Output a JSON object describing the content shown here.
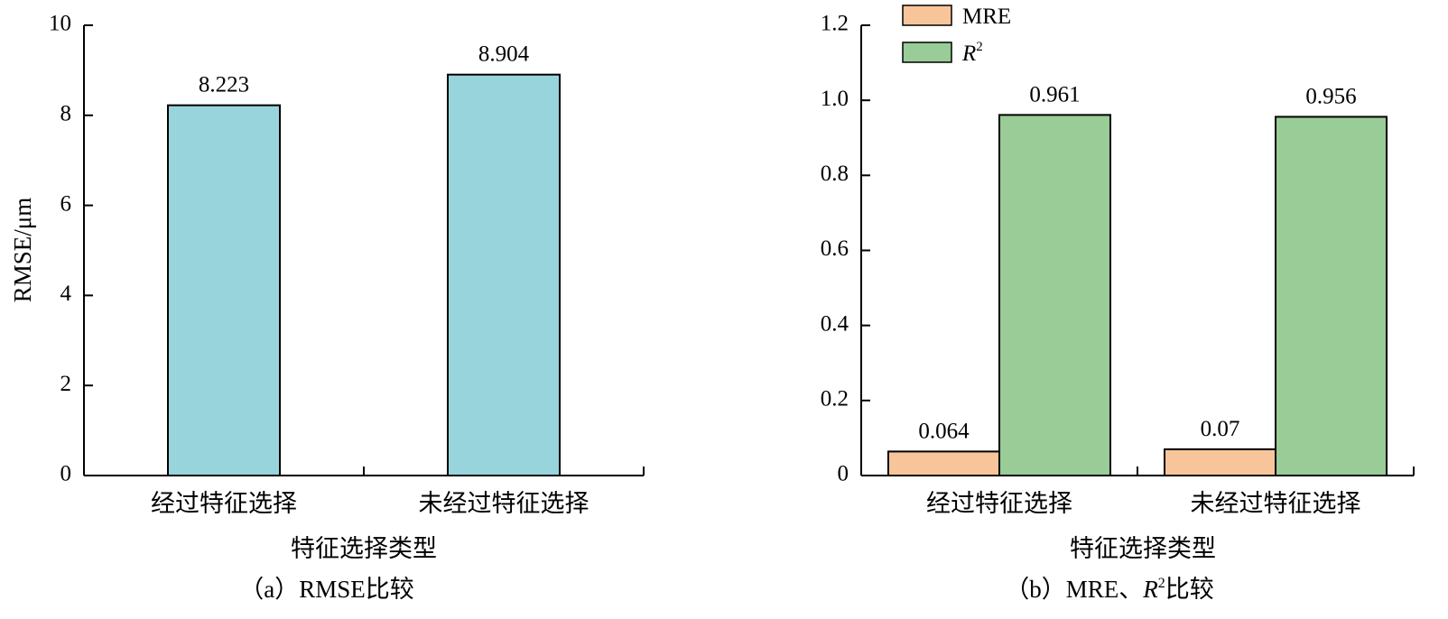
{
  "chart_data": [
    {
      "type": "bar",
      "categories": [
        "经过特征选择",
        "未经过特征选择"
      ],
      "series": [
        {
          "values": [
            8.223,
            8.904
          ],
          "labels": [
            "8.223",
            "8.904"
          ],
          "color": "#98d4dc"
        }
      ],
      "ylabel": "RMSE/μm",
      "xlabel": "特征选择类型",
      "caption": "（a）RMSE比较",
      "ylim": [
        0,
        10
      ],
      "yticks": [
        "0",
        "2",
        "4",
        "6",
        "8",
        "10"
      ],
      "grid": false,
      "legend": "none"
    },
    {
      "type": "bar",
      "categories": [
        "经过特征选择",
        "未经过特征选择"
      ],
      "series": [
        {
          "name": "MRE",
          "values": [
            0.064,
            0.07
          ],
          "labels": [
            "0.064",
            "0.07"
          ],
          "color": "#f8c59b"
        },
        {
          "name": "R",
          "name_sup": "2",
          "values": [
            0.961,
            0.956
          ],
          "labels": [
            "0.961",
            "0.956"
          ],
          "color": "#99cc96"
        }
      ],
      "ylabel": "",
      "xlabel": "特征选择类型",
      "caption": "（b）MRE、",
      "caption_r": "R",
      "caption_sup": "2",
      "caption_tail": "比较",
      "ylim": [
        0,
        1.2
      ],
      "yticks": [
        "0",
        "0.2",
        "0.4",
        "0.6",
        "0.8",
        "1.0",
        "1.2"
      ],
      "grid": false,
      "legend": "top-left"
    }
  ]
}
